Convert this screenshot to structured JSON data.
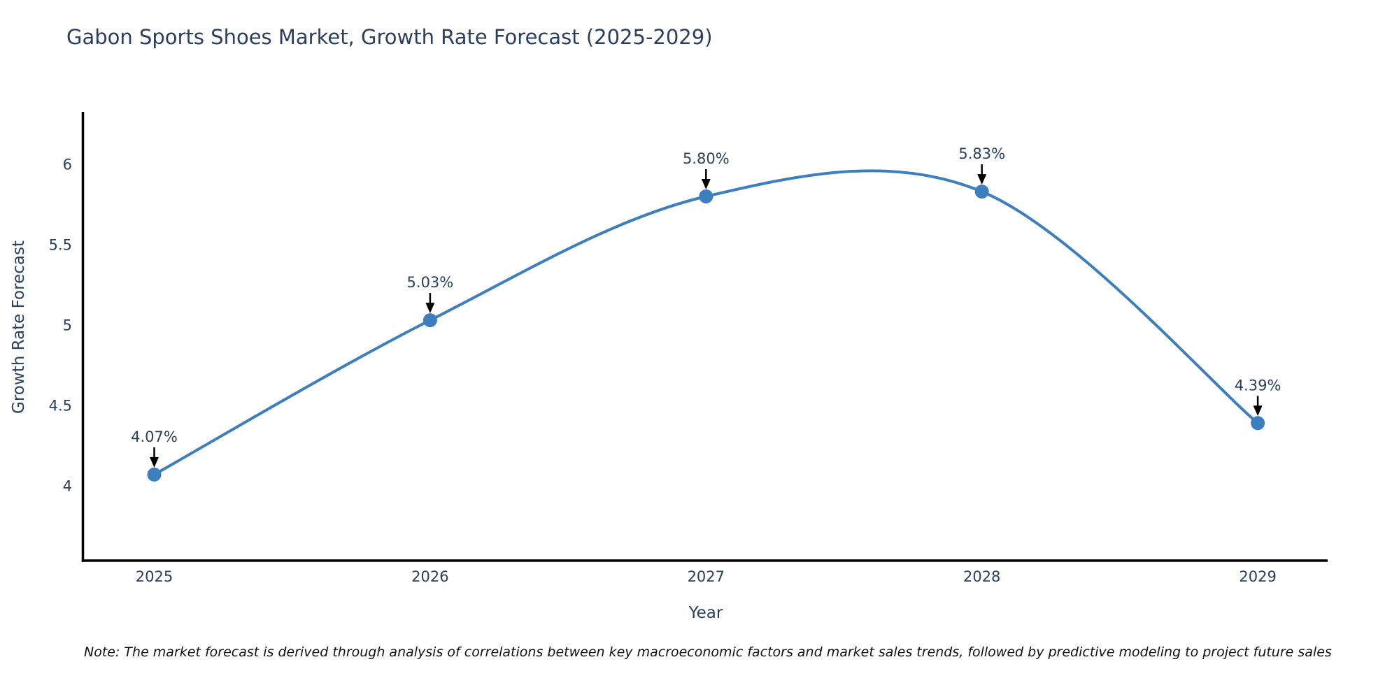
{
  "title": "Gabon Sports Shoes Market, Growth Rate Forecast (2025-2029)",
  "note": "Note: The market forecast is derived through analysis of correlations between key macroeconomic factors and market sales trends, followed by predictive modeling to project future sales",
  "chart_data": {
    "type": "line",
    "line_shape": "spline",
    "title": "Gabon Sports Shoes Market, Growth Rate Forecast (2025-2029)",
    "xlabel": "Year",
    "ylabel": "Growth Rate Forecast",
    "categories": [
      "2025",
      "2026",
      "2027",
      "2028",
      "2029"
    ],
    "values": [
      4.07,
      5.03,
      5.8,
      5.83,
      4.39
    ],
    "point_labels": [
      "4.07%",
      "5.03%",
      "5.80%",
      "5.83%",
      "4.39%"
    ],
    "yticks": [
      4,
      4.5,
      5,
      5.5,
      6
    ],
    "ytick_labels": [
      "4",
      "4.5",
      "5",
      "5.5",
      "6"
    ],
    "ylim": [
      3.55,
      6.35
    ],
    "grid": false,
    "legend": "none",
    "markers": true,
    "annotation_style": "value-above-with-down-arrow",
    "colors": {
      "line": "#3d7ebf",
      "marker": "#3d7ebf",
      "axis": "#000000",
      "annotation_arrow": "#000000",
      "annotation_text": "#2a3f5f",
      "tick_text": "#2a3f5f",
      "title_text": "#2a3f5f",
      "note_text": "#111111",
      "background": "#ffffff"
    }
  }
}
